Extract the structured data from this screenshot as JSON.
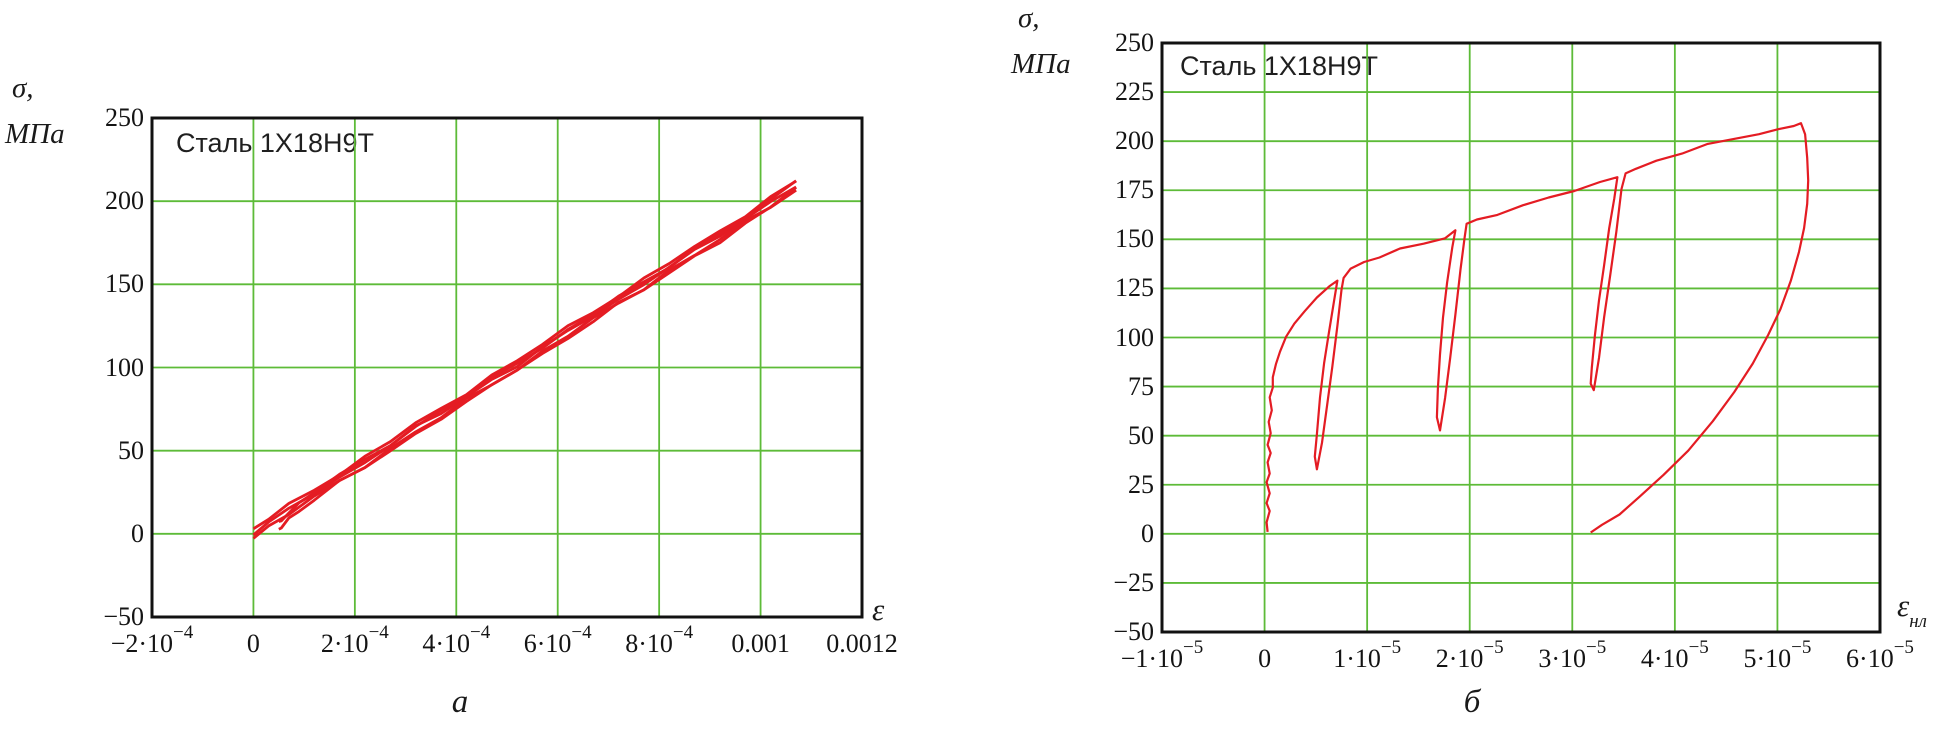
{
  "figure": {
    "background": "#ffffff",
    "description": "Two cyclic stress-strain diagrams for steel 1X18H9T"
  },
  "chart_data": [
    {
      "id": "a",
      "type": "line",
      "title": "Сталь 1Х18Н9Т",
      "caption": "а",
      "y_axis_label": {
        "line1": "σ,",
        "line2": "МПа"
      },
      "x_axis_label": {
        "base": "ε",
        "sub": ""
      },
      "xlim": [
        -0.0002,
        0.0012
      ],
      "ylim": [
        -50,
        250
      ],
      "grid": true,
      "legend": "none",
      "colors": {
        "grid": "#5dbb38",
        "curve": "#e41c23",
        "border": "#111111"
      },
      "y_ticks": [
        250,
        200,
        150,
        100,
        50,
        0,
        -50
      ],
      "x_ticks": [
        {
          "v": -0.0002,
          "label": "−2·10^−4"
        },
        {
          "v": 0,
          "label": "0"
        },
        {
          "v": 0.0002,
          "label": "2·10^−4"
        },
        {
          "v": 0.0004,
          "label": "4·10^−4"
        },
        {
          "v": 0.0006,
          "label": "6·10^−4"
        },
        {
          "v": 0.0008,
          "label": "8·10^−4"
        },
        {
          "v": 0.001,
          "label": "0.001"
        },
        {
          "v": 0.0012,
          "label": "0.0012"
        }
      ],
      "series": [
        {
          "name": "loading-branch-band",
          "x_scale": 0.0001,
          "passes": [
            -5,
            -1,
            3
          ],
          "jitter": 1.6,
          "points": [
            [
              0,
              0
            ],
            [
              0.3,
              6
            ],
            [
              0.7,
              14
            ],
            [
              1.2,
              24
            ],
            [
              1.7,
              33
            ],
            [
              2.2,
              43
            ],
            [
              2.7,
              53
            ],
            [
              3.2,
              63
            ],
            [
              3.7,
              72
            ],
            [
              4.2,
              82
            ],
            [
              4.7,
              92
            ],
            [
              5.2,
              101
            ],
            [
              5.7,
              111
            ],
            [
              6.2,
              121
            ],
            [
              6.7,
              131
            ],
            [
              7.2,
              140
            ],
            [
              7.7,
              150
            ],
            [
              8.2,
              160
            ],
            [
              8.7,
              169
            ],
            [
              9.2,
              179
            ],
            [
              9.7,
              189
            ],
            [
              10.2,
              199
            ],
            [
              10.7,
              209
            ]
          ]
        },
        {
          "name": "unloading-branch",
          "x_scale": 0.0001,
          "passes": [
            0,
            -7
          ],
          "jitter": 1.4,
          "points": [
            [
              10.7,
              209
            ],
            [
              10.2,
              196
            ],
            [
              9.7,
              186
            ],
            [
              9.2,
              176
            ],
            [
              8.7,
              167
            ],
            [
              8.2,
              157
            ],
            [
              7.7,
              147
            ],
            [
              7.2,
              138
            ],
            [
              6.7,
              128
            ],
            [
              6.2,
              118
            ],
            [
              5.7,
              108
            ],
            [
              5.2,
              99
            ],
            [
              4.7,
              89
            ],
            [
              4.2,
              79
            ],
            [
              3.7,
              70
            ],
            [
              3.2,
              60
            ],
            [
              2.7,
              50
            ],
            [
              2.2,
              40
            ],
            [
              1.7,
              31
            ],
            [
              1.2,
              21
            ],
            [
              0.9,
              14
            ],
            [
              0.7,
              9
            ],
            [
              0.55,
              4
            ],
            [
              0.5,
              2
            ]
          ]
        }
      ]
    },
    {
      "id": "b",
      "type": "line",
      "title": "Сталь 1Х18Н9Т",
      "caption": "б",
      "y_axis_label": {
        "line1": "σ,",
        "line2": "МПа"
      },
      "x_axis_label": {
        "base": "ε",
        "sub": "нл"
      },
      "xlim": [
        -1e-05,
        6e-05
      ],
      "ylim": [
        -50,
        250
      ],
      "grid": true,
      "legend": "none",
      "colors": {
        "grid": "#5dbb38",
        "curve": "#e41c23",
        "border": "#111111"
      },
      "y_ticks": [
        250,
        225,
        200,
        175,
        150,
        125,
        100,
        75,
        50,
        25,
        0,
        -25,
        -50
      ],
      "x_ticks": [
        {
          "v": -1e-05,
          "label": "−1·10^−5"
        },
        {
          "v": 0,
          "label": "0"
        },
        {
          "v": 1e-05,
          "label": "1·10^−5"
        },
        {
          "v": 2e-05,
          "label": "2·10^−5"
        },
        {
          "v": 3e-05,
          "label": "3·10^−5"
        },
        {
          "v": 4e-05,
          "label": "4·10^−5"
        },
        {
          "v": 5e-05,
          "label": "5·10^−5"
        },
        {
          "v": 6e-05,
          "label": "6·10^−5"
        }
      ],
      "series": [
        {
          "name": "cyclic-loading-path-with-loops",
          "x_scale": 1e-05,
          "passes": [
            0
          ],
          "jitter": 0.9,
          "points": [
            [
              0.03,
              1
            ],
            [
              0.02,
              6
            ],
            [
              0.05,
              11
            ],
            [
              0.02,
              16
            ],
            [
              0.05,
              21
            ],
            [
              0.02,
              26
            ],
            [
              0.05,
              31
            ],
            [
              0.03,
              36
            ],
            [
              0.06,
              41
            ],
            [
              0.03,
              46
            ],
            [
              0.06,
              51
            ],
            [
              0.04,
              57
            ],
            [
              0.07,
              63
            ],
            [
              0.05,
              69
            ],
            [
              0.08,
              75
            ],
            [
              0.08,
              80
            ],
            [
              0.11,
              86
            ],
            [
              0.15,
              93
            ],
            [
              0.21,
              100
            ],
            [
              0.29,
              107
            ],
            [
              0.39,
              114
            ],
            [
              0.51,
              120
            ],
            [
              0.63,
              126
            ],
            [
              0.71,
              129
            ],
            [
              0.68,
              119
            ],
            [
              0.63,
              104
            ],
            [
              0.58,
              87
            ],
            [
              0.54,
              69
            ],
            [
              0.51,
              51
            ],
            [
              0.49,
              39
            ],
            [
              0.51,
              33
            ],
            [
              0.56,
              47
            ],
            [
              0.61,
              65
            ],
            [
              0.66,
              85
            ],
            [
              0.71,
              106
            ],
            [
              0.75,
              124
            ],
            [
              0.77,
              131
            ],
            [
              0.84,
              135
            ],
            [
              0.97,
              138
            ],
            [
              1.12,
              141
            ],
            [
              1.32,
              145
            ],
            [
              1.55,
              148
            ],
            [
              1.76,
              151
            ],
            [
              1.86,
              154
            ],
            [
              1.83,
              146
            ],
            [
              1.78,
              128
            ],
            [
              1.74,
              110
            ],
            [
              1.71,
              92
            ],
            [
              1.69,
              74
            ],
            [
              1.68,
              59
            ],
            [
              1.71,
              53
            ],
            [
              1.76,
              69
            ],
            [
              1.81,
              90
            ],
            [
              1.86,
              112
            ],
            [
              1.91,
              134
            ],
            [
              1.95,
              151
            ],
            [
              1.97,
              158
            ],
            [
              2.07,
              160
            ],
            [
              2.27,
              163
            ],
            [
              2.52,
              167
            ],
            [
              2.77,
              171
            ],
            [
              3.02,
              175
            ],
            [
              3.27,
              179
            ],
            [
              3.44,
              182
            ],
            [
              3.41,
              171
            ],
            [
              3.36,
              155
            ],
            [
              3.31,
              137
            ],
            [
              3.26,
              119
            ],
            [
              3.22,
              101
            ],
            [
              3.19,
              85
            ],
            [
              3.18,
              76
            ],
            [
              3.21,
              73
            ],
            [
              3.26,
              90
            ],
            [
              3.31,
              110
            ],
            [
              3.37,
              132
            ],
            [
              3.43,
              154
            ],
            [
              3.48,
              175
            ],
            [
              3.52,
              184
            ],
            [
              3.62,
              186
            ],
            [
              3.82,
              190
            ],
            [
              4.07,
              194
            ],
            [
              4.32,
              198
            ],
            [
              4.57,
              201
            ],
            [
              4.82,
              204
            ],
            [
              5.02,
              206
            ],
            [
              5.16,
              208
            ],
            [
              5.23,
              209
            ],
            [
              5.27,
              203
            ],
            [
              5.29,
              192
            ],
            [
              5.3,
              180
            ],
            [
              5.29,
              168
            ],
            [
              5.26,
              156
            ],
            [
              5.21,
              143
            ],
            [
              5.13,
              129
            ],
            [
              5.03,
              115
            ],
            [
              4.91,
              101
            ],
            [
              4.76,
              87
            ],
            [
              4.58,
              72
            ],
            [
              4.37,
              57
            ],
            [
              4.13,
              43
            ],
            [
              3.89,
              30
            ],
            [
              3.66,
              19
            ],
            [
              3.46,
              10
            ],
            [
              3.29,
              4
            ],
            [
              3.18,
              1
            ]
          ]
        }
      ]
    }
  ]
}
